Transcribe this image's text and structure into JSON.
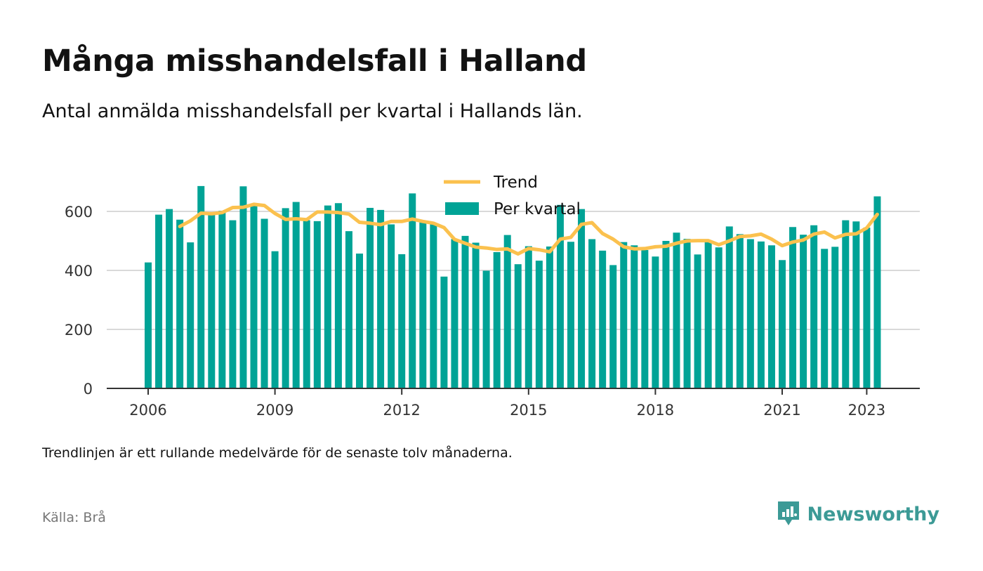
{
  "title": "Många misshandelsfall i Halland",
  "subtitle": "Antal anmälda misshandelsfall per kvartal i Hallands län.",
  "note": "Trendlinjen är ett rullande medelvärde för de senaste tolv månaderna.",
  "source": "Källa: Brå",
  "brand": {
    "name": "Newsworthy",
    "icon": "newsworthy-logo-icon"
  },
  "colors": {
    "bars": "#00a396",
    "trend": "#fbc14e",
    "grid": "#d9d9d9",
    "axis": "#333333",
    "brand": "#3c9a96"
  },
  "chart_data": {
    "type": "bar",
    "x_start": "2006 Q1",
    "x_ticks": [
      "2006",
      "2009",
      "2012",
      "2015",
      "2018",
      "2021",
      "2023"
    ],
    "y_ticks": [
      "0",
      "200",
      "400",
      "600"
    ],
    "ylim": [
      0,
      720
    ],
    "grid": true,
    "legend_position": "top-center",
    "series": [
      {
        "name": "Per kvartal",
        "type": "bar",
        "values": [
          427,
          589,
          608,
          572,
          495,
          686,
          588,
          602,
          570,
          685,
          618,
          575,
          465,
          611,
          632,
          570,
          567,
          620,
          628,
          533,
          457,
          612,
          605,
          556,
          455,
          661,
          568,
          557,
          379,
          506,
          517,
          494,
          399,
          462,
          520,
          421,
          482,
          433,
          481,
          622,
          497,
          608,
          506,
          467,
          418,
          496,
          485,
          469,
          447,
          500,
          528,
          507,
          454,
          496,
          478,
          549,
          523,
          506,
          498,
          485,
          435,
          547,
          521,
          553,
          473,
          480,
          570,
          566,
          545,
          651
        ]
      },
      {
        "name": "Trend",
        "type": "line",
        "start_index": 3,
        "values": [
          549,
          568,
          594,
          592,
          596,
          613,
          614,
          624,
          620,
          593,
          573,
          575,
          572,
          598,
          598,
          596,
          591,
          563,
          560,
          555,
          566,
          566,
          574,
          566,
          560,
          545,
          505,
          492,
          479,
          476,
          471,
          473,
          456,
          474,
          470,
          463,
          506,
          512,
          556,
          562,
          525,
          506,
          480,
          473,
          474,
          480,
          482,
          492,
          500,
          501,
          501,
          487,
          500,
          515,
          517,
          523,
          506,
          484,
          496,
          503,
          523,
          530,
          510,
          522,
          524,
          544,
          590
        ]
      }
    ]
  }
}
